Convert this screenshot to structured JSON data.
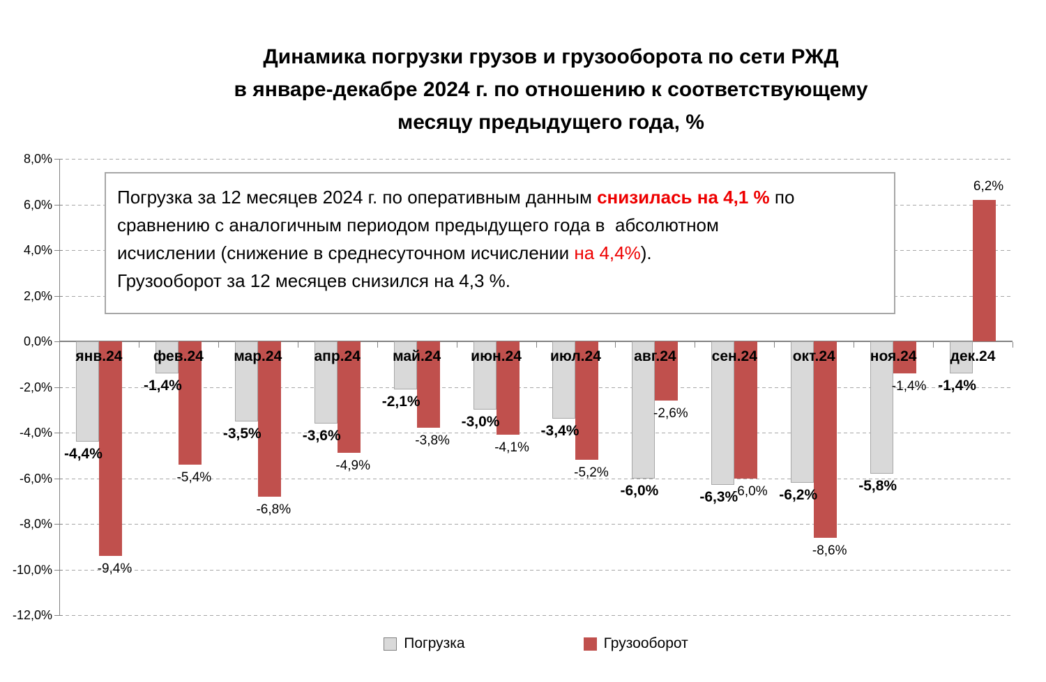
{
  "title": {
    "text": "Динамика  погрузки грузов и грузооборота по сети РЖД\nв январе-декабре 2024 г. по отношению к соответствующему\nмесяцу предыдущего года, %"
  },
  "annotation": {
    "segments": [
      {
        "text": "Погрузка за 12 месяцев 2024 г. по оперативным данным ",
        "style": "normal"
      },
      {
        "text": "снизилась на 4,1 %",
        "style": "red-bold"
      },
      {
        "text": " по\nсравнению с аналогичным периодом предыдущего года в  абсолютном\nисчислении (снижение в среднесуточном исчислении ",
        "style": "normal"
      },
      {
        "text": "на 4,4%",
        "style": "red"
      },
      {
        "text": ").\nГрузооборот за 12 месяцев снизился на 4,3 %.",
        "style": "normal"
      }
    ]
  },
  "chart_data": {
    "type": "bar",
    "title": "Динамика погрузки грузов и грузооборота по сети РЖД в январе-декабре 2024 г. по отношению к соответствующему месяцу предыдущего года, %",
    "categories": [
      "янв.24",
      "фев.24",
      "мар.24",
      "апр.24",
      "май.24",
      "июн.24",
      "июл.24",
      "авг.24",
      "сен.24",
      "окт.24",
      "ноя.24",
      "дек.24"
    ],
    "series": [
      {
        "name": "Погрузка",
        "color": "#d9d9d9",
        "border_color": "#a6a6a6",
        "values": [
          -4.4,
          -1.4,
          -3.5,
          -3.6,
          -2.1,
          -3.0,
          -3.4,
          -6.0,
          -6.3,
          -6.2,
          -5.8,
          -1.4
        ],
        "labels": [
          "-4,4%",
          "-1,4%",
          "-3,5%",
          "-3,6%",
          "-2,1%",
          "-3,0%",
          "-3,4%",
          "-6,0%",
          "-6,3%",
          "-6,2%",
          "-5,8%",
          "-1,4%"
        ]
      },
      {
        "name": "Грузооборот",
        "color": "#c0504d",
        "values": [
          -9.4,
          -5.4,
          -6.8,
          -4.9,
          -3.8,
          -4.1,
          -5.2,
          -2.6,
          -6.0,
          -8.6,
          -1.4,
          6.2
        ],
        "labels": [
          "-9,4%",
          "-5,4%",
          "-6,8%",
          "-4,9%",
          "-3,8%",
          "-4,1%",
          "-5,2%",
          "-2,6%",
          "-6,0%",
          "-8,6%",
          "-1,4%",
          "6,2%"
        ]
      }
    ],
    "ylim": [
      -12,
      8
    ],
    "ytick_step": 2,
    "yticks": [
      {
        "label": "8,0%",
        "value": 8
      },
      {
        "label": "6,0%",
        "value": 6
      },
      {
        "label": "4,0%",
        "value": 4
      },
      {
        "label": "2,0%",
        "value": 2
      },
      {
        "label": "0,0%",
        "value": 0
      },
      {
        "label": "-2,0%",
        "value": -2
      },
      {
        "label": "-4,0%",
        "value": -4
      },
      {
        "label": "-6,0%",
        "value": -6
      },
      {
        "label": "-8,0%",
        "value": -8
      },
      {
        "label": "-10,0%",
        "value": -10
      },
      {
        "label": "-12,0%",
        "value": -12
      }
    ],
    "grid": "dashed-horizontal",
    "legend_position": "bottom"
  },
  "legend": {
    "items": [
      {
        "label": "Погрузка",
        "color": "#d9d9d9"
      },
      {
        "label": "Грузооборот",
        "color": "#c0504d"
      }
    ]
  },
  "colors": {
    "loading_bar": "#d9d9d9",
    "loading_bar_border": "#a6a6a6",
    "turnover_bar": "#c0504d",
    "highlight_text": "#ee0000",
    "axis": "#808080",
    "gridline": "#a6a6a6"
  }
}
